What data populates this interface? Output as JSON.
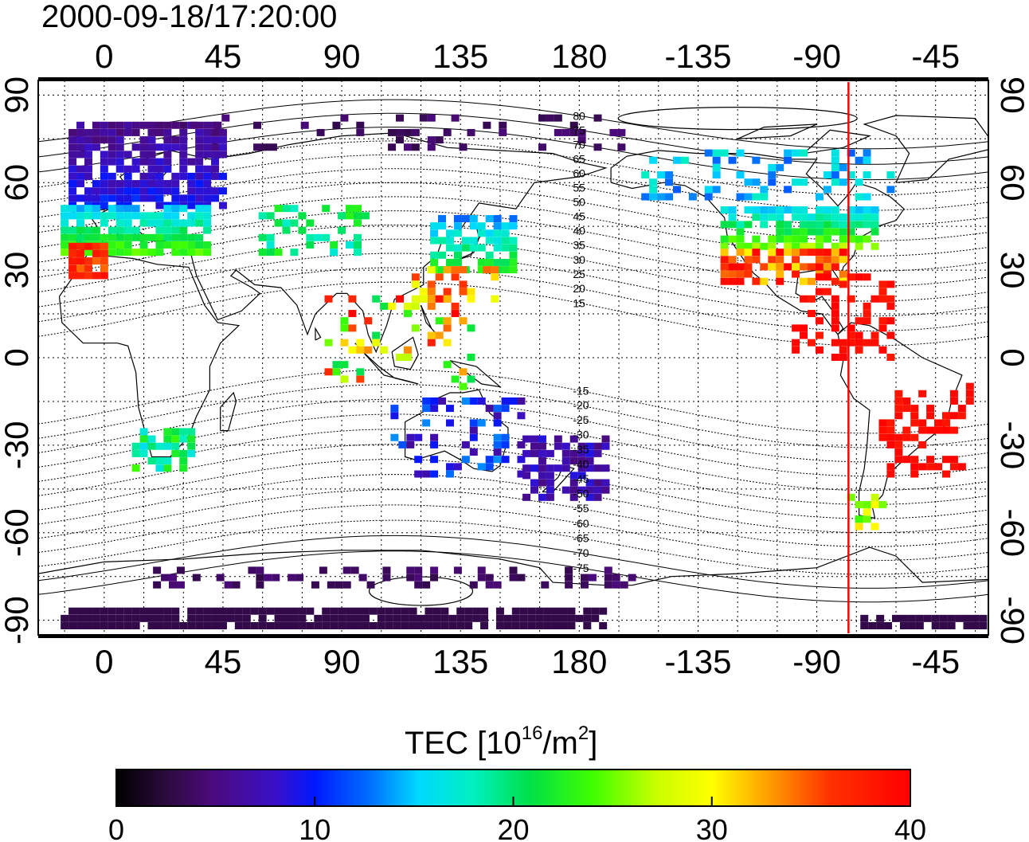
{
  "map": {
    "timestamp": "2000-09-18/17:20:00",
    "lon_ticks": [
      "0",
      "45",
      "90",
      "135",
      "180",
      "-135",
      "-90",
      "-45"
    ],
    "lat_ticks": [
      "90",
      "60",
      "30",
      "0",
      "-30",
      "-60",
      "-90"
    ],
    "mlat_contours": [
      "80",
      "75",
      "70",
      "65",
      "60",
      "55",
      "50",
      "45",
      "40",
      "35",
      "30",
      "25",
      "20",
      "15",
      "-15",
      "-20",
      "-25",
      "-30",
      "-35",
      "-40",
      "-45",
      "-50",
      "-55",
      "-60",
      "-65",
      "-70",
      "-75"
    ],
    "terminator_lon": -78
  },
  "colorbar": {
    "label_main": "TEC  [10",
    "label_exp1": "16",
    "label_mid": "/m",
    "label_exp2": "2",
    "label_end": "]",
    "ticks": [
      "0",
      "10",
      "20",
      "30",
      "40"
    ],
    "min": 0,
    "max": 40
  },
  "colors": {
    "terminator": "#ff0000",
    "frame": "#000000"
  }
}
